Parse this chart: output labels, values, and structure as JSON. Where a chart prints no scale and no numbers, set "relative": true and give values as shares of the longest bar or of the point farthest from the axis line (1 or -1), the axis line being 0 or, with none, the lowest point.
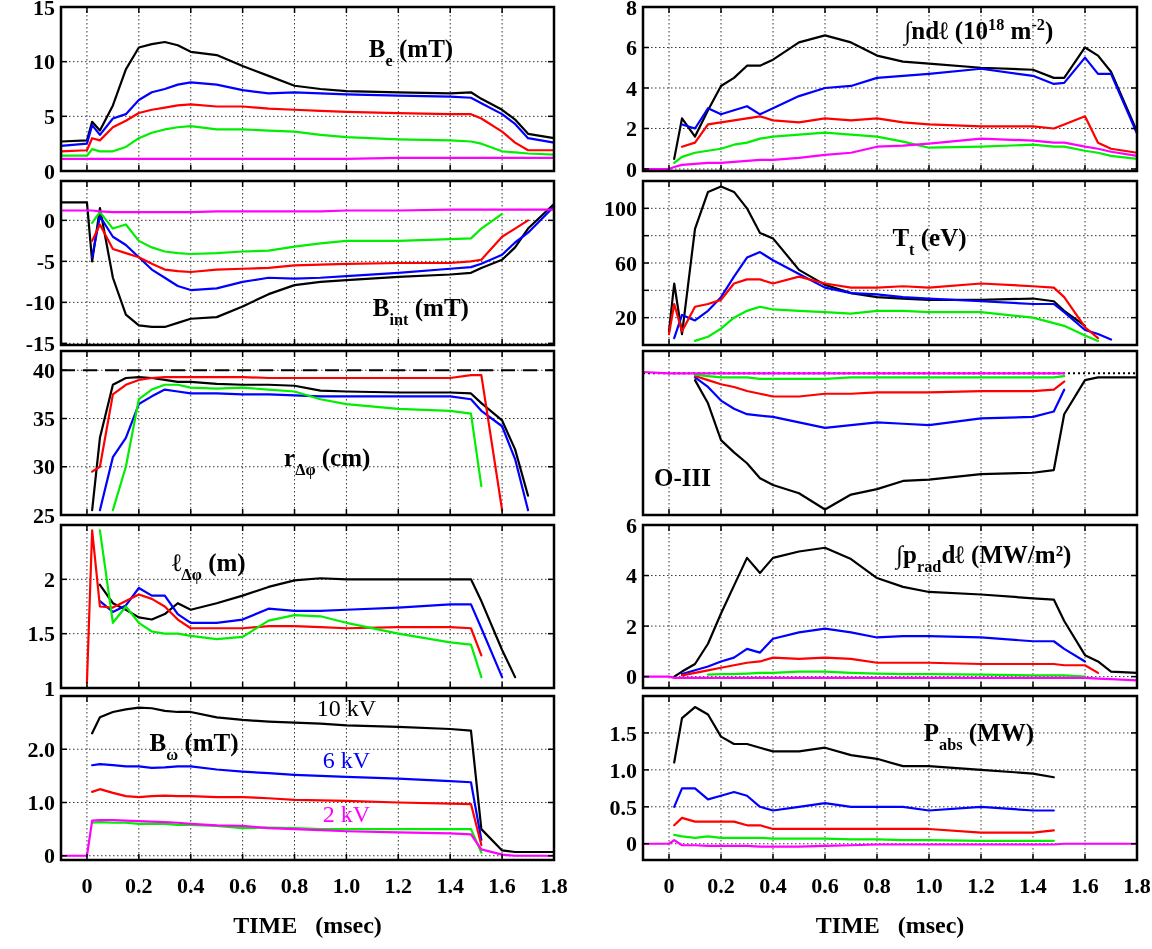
{
  "chart_data": [
    {
      "type": "line",
      "title": "B$_{e}$ (mT)",
      "x": [
        -0.1,
        0,
        0.02,
        0.05,
        0.1,
        0.15,
        0.2,
        0.25,
        0.3,
        0.35,
        0.4,
        0.5,
        0.6,
        0.7,
        0.8,
        0.9,
        1.0,
        1.2,
        1.4,
        1.48,
        1.52,
        1.6,
        1.65,
        1.7,
        1.8
      ],
      "xlim": [
        -0.1,
        1.8
      ],
      "xticks": [
        0,
        0.2,
        0.4,
        0.6,
        0.8,
        1,
        1.2,
        1.4,
        1.6,
        1.8
      ],
      "ylim": [
        0,
        15
      ],
      "yticks": [
        0,
        5,
        10,
        15
      ],
      "grid": true,
      "tick_labels": "y",
      "series": [
        {
          "color": "#000000",
          "values": [
            2.7,
            2.8,
            4.5,
            3.7,
            6,
            9.3,
            11.3,
            11.6,
            11.8,
            11.5,
            10.9,
            10.6,
            9.6,
            8.7,
            7.8,
            7.5,
            7.3,
            7.2,
            7.1,
            7.2,
            6.6,
            5.6,
            4.7,
            3.4,
            3.0
          ]
        },
        {
          "color": "#0000ff",
          "values": [
            2.3,
            2.5,
            4.2,
            3.3,
            4.8,
            5.2,
            6.5,
            7.2,
            7.5,
            7.9,
            8.1,
            7.9,
            7.4,
            7.1,
            7.2,
            7.1,
            7.0,
            6.9,
            6.8,
            6.7,
            6.2,
            5.2,
            4.3,
            3.0,
            2.6
          ]
        },
        {
          "color": "#ff0000",
          "values": [
            1.8,
            1.9,
            3.0,
            2.8,
            4.0,
            4.6,
            5.3,
            5.6,
            5.8,
            6.0,
            6.1,
            5.9,
            5.9,
            5.7,
            5.6,
            5.5,
            5.4,
            5.3,
            5.2,
            5.2,
            4.8,
            3.6,
            2.6,
            1.9,
            1.9
          ]
        },
        {
          "color": "#00ee00",
          "values": [
            1.4,
            1.4,
            2.0,
            1.8,
            1.8,
            2.2,
            3.0,
            3.5,
            3.8,
            4.0,
            4.1,
            3.8,
            3.8,
            3.7,
            3.6,
            3.3,
            3.1,
            2.9,
            2.8,
            2.7,
            2.5,
            1.8,
            1.7,
            1.6,
            1.5
          ]
        },
        {
          "color": "#ff00ff",
          "values": [
            1.1,
            1.1,
            1.1,
            1.1,
            1.1,
            1.1,
            1.1,
            1.1,
            1.1,
            1.1,
            1.1,
            1.1,
            1.1,
            1.1,
            1.1,
            1.1,
            1.1,
            1.2,
            1.2,
            1.2,
            1.2,
            1.2,
            1.2,
            1.2,
            1.2
          ]
        }
      ]
    },
    {
      "type": "line",
      "title": "∫ndℓ (10$^{18}$ m$^{-2}$)",
      "x": [
        -0.1,
        0,
        0.02,
        0.05,
        0.1,
        0.15,
        0.2,
        0.25,
        0.3,
        0.35,
        0.4,
        0.5,
        0.6,
        0.7,
        0.8,
        0.9,
        1.0,
        1.2,
        1.4,
        1.48,
        1.52,
        1.6,
        1.65,
        1.7,
        1.8
      ],
      "xlim": [
        -0.1,
        1.8
      ],
      "xticks": [
        0,
        0.2,
        0.4,
        0.6,
        0.8,
        1,
        1.2,
        1.4,
        1.6,
        1.8
      ],
      "ylim": [
        -0.1,
        8
      ],
      "yticks": [
        0,
        2,
        4,
        6,
        8
      ],
      "grid": true,
      "tick_labels": "y",
      "series": [
        {
          "color": "#000000",
          "values": [
            null,
            null,
            0.5,
            2.5,
            1.6,
            2.9,
            4.1,
            4.5,
            5.1,
            5.1,
            5.4,
            6.25,
            6.6,
            6.25,
            5.6,
            5.3,
            5.2,
            5.0,
            4.9,
            4.5,
            4.5,
            6.0,
            5.6,
            4.8,
            1.85
          ]
        },
        {
          "color": "#0000ff",
          "values": [
            null,
            null,
            null,
            2.2,
            2.0,
            3.0,
            2.7,
            2.9,
            3.1,
            2.7,
            3.0,
            3.6,
            4.0,
            4.1,
            4.5,
            4.6,
            4.7,
            4.95,
            4.6,
            4.2,
            4.25,
            5.5,
            4.7,
            4.7,
            1.75
          ]
        },
        {
          "color": "#ff0000",
          "values": [
            null,
            null,
            null,
            1.1,
            1.3,
            2.2,
            2.3,
            2.4,
            2.5,
            2.6,
            2.4,
            2.3,
            2.5,
            2.4,
            2.5,
            2.3,
            2.2,
            2.1,
            2.1,
            2.0,
            2.2,
            2.6,
            1.3,
            1.0,
            0.8
          ]
        },
        {
          "color": "#00ee00",
          "values": [
            null,
            null,
            0.3,
            0.6,
            0.8,
            0.9,
            1.0,
            1.2,
            1.3,
            1.5,
            1.6,
            1.7,
            1.8,
            1.7,
            1.6,
            1.35,
            1.05,
            1.1,
            1.2,
            1.1,
            1.1,
            0.9,
            0.8,
            0.65,
            0.5
          ]
        },
        {
          "color": "#ff00ff",
          "values": [
            0,
            0,
            0.1,
            0.2,
            0.25,
            0.3,
            0.3,
            0.35,
            0.4,
            0.45,
            0.45,
            0.55,
            0.7,
            0.8,
            1.1,
            1.15,
            1.25,
            1.5,
            1.4,
            1.3,
            1.3,
            1.1,
            1.0,
            0.85,
            0.65
          ]
        }
      ]
    },
    {
      "type": "line",
      "title": "B$_{int}$ (mT)",
      "x": [
        -0.1,
        0,
        0.02,
        0.05,
        0.1,
        0.15,
        0.2,
        0.25,
        0.3,
        0.35,
        0.4,
        0.5,
        0.6,
        0.7,
        0.8,
        0.9,
        1.0,
        1.2,
        1.4,
        1.48,
        1.52,
        1.6,
        1.65,
        1.7,
        1.8
      ],
      "xlim": [
        -0.1,
        1.8
      ],
      "xticks": [
        0,
        0.2,
        0.4,
        0.6,
        0.8,
        1,
        1.2,
        1.4,
        1.6,
        1.8
      ],
      "ylim": [
        -15.2,
        4.8
      ],
      "yticks": [
        -15,
        -10,
        -5,
        0
      ],
      "grid": true,
      "tick_labels": "y",
      "series": [
        {
          "color": "#000000",
          "values": [
            2.2,
            2.2,
            -5,
            1.5,
            -7,
            -11.5,
            -12.8,
            -13,
            -13,
            -12.5,
            -12,
            -11.8,
            -10.5,
            -9,
            -7.9,
            -7.5,
            -7.3,
            -6.9,
            -6.6,
            -6.4,
            -5.8,
            -4.8,
            -3.3,
            -1,
            2
          ]
        },
        {
          "color": "#0000ff",
          "values": [
            null,
            null,
            -4.5,
            0.5,
            -2,
            -3,
            -4.5,
            -6,
            -7,
            -8,
            -8.5,
            -8.3,
            -7.5,
            -7,
            -7.1,
            -7,
            -6.8,
            -6.4,
            -5.9,
            -5.7,
            -5.3,
            -4.2,
            -2.7,
            -1.5,
            1.7
          ]
        },
        {
          "color": "#ff0000",
          "values": [
            null,
            null,
            -2.5,
            -0.5,
            -3.5,
            -4,
            -4.5,
            -5.3,
            -6,
            -6.2,
            -6.3,
            -6,
            -5.9,
            -5.8,
            -5.5,
            -5.4,
            -5.3,
            -5.2,
            -5.2,
            -5,
            -4.8,
            -2,
            -1,
            0,
            null
          ]
        },
        {
          "color": "#00ee00",
          "values": [
            null,
            null,
            -0.3,
            1.0,
            -1,
            -0.5,
            -2.5,
            -3.3,
            -3.8,
            -4,
            -4.1,
            -4,
            -3.8,
            -3.7,
            -3.2,
            -2.8,
            -2.5,
            -2.5,
            -2.3,
            -2.2,
            -1,
            0.8,
            null,
            null,
            null
          ]
        },
        {
          "color": "#ff00ff",
          "values": [
            1.2,
            1.2,
            1.2,
            1.1,
            1,
            1,
            1,
            1,
            1,
            1,
            1,
            1.1,
            1.1,
            1.1,
            1.1,
            1.1,
            1.2,
            1.2,
            1.3,
            1.3,
            1.3,
            1.3,
            1.3,
            1.3,
            1.3
          ]
        }
      ]
    },
    {
      "type": "line",
      "title": "T$_{t}$ (eV)",
      "x": [
        0,
        0.02,
        0.05,
        0.1,
        0.15,
        0.2,
        0.25,
        0.3,
        0.35,
        0.4,
        0.5,
        0.6,
        0.7,
        0.8,
        0.9,
        1.0,
        1.2,
        1.4,
        1.48,
        1.52,
        1.6,
        1.65,
        1.7
      ],
      "xlim": [
        -0.1,
        1.8
      ],
      "xticks": [
        0,
        0.2,
        0.4,
        0.6,
        0.8,
        1,
        1.2,
        1.4,
        1.6,
        1.8
      ],
      "ylim": [
        0,
        120
      ],
      "yticks": [
        20,
        {
          "value": 40,
          "label": null
        },
        60,
        {
          "value": 80,
          "label": null
        },
        100
      ],
      "grid": true,
      "tick_labels": "y",
      "series": [
        {
          "color": "#000000",
          "values": [
            10,
            45,
            8,
            85,
            112,
            116,
            112,
            100,
            82,
            78,
            55,
            44,
            38,
            35,
            34,
            33,
            33,
            34,
            32,
            25,
            14,
            null,
            null
          ]
        },
        {
          "color": "#0000ff",
          "values": [
            null,
            5,
            22,
            18,
            25,
            35,
            50,
            64,
            68,
            62,
            52,
            42,
            38,
            37,
            35,
            34,
            32,
            30,
            30,
            24,
            11,
            8,
            4
          ]
        },
        {
          "color": "#ff0000",
          "values": [
            8,
            30,
            10,
            28,
            30,
            33,
            45,
            48,
            48,
            45,
            50,
            45,
            42,
            42,
            43,
            42,
            45,
            43,
            42,
            35,
            13,
            5,
            null
          ]
        },
        {
          "color": "#00ee00",
          "values": [
            null,
            null,
            null,
            3,
            6,
            12,
            20,
            25,
            28,
            26,
            25,
            24,
            23,
            25,
            25,
            24,
            24,
            20,
            16,
            14,
            7,
            3,
            null
          ]
        }
      ]
    },
    {
      "type": "line",
      "title": "r$_{Δφ}$ (cm)",
      "x": [
        0.02,
        0.05,
        0.1,
        0.15,
        0.2,
        0.25,
        0.3,
        0.35,
        0.4,
        0.5,
        0.6,
        0.7,
        0.8,
        0.9,
        1.0,
        1.2,
        1.4,
        1.48,
        1.52,
        1.6,
        1.65,
        1.7
      ],
      "xlim": [
        -0.1,
        1.8
      ],
      "xticks": [
        0,
        0.2,
        0.4,
        0.6,
        0.8,
        1,
        1.2,
        1.4,
        1.6,
        1.8
      ],
      "ylim": [
        25,
        42
      ],
      "yticks": [
        25,
        30,
        35,
        40
      ],
      "grid": true,
      "tick_labels": "y",
      "ref_lines": [
        {
          "axis": "y",
          "value": 40,
          "color": "#000000",
          "line_style": "dashed"
        }
      ],
      "series": [
        {
          "color": "#000000",
          "values": [
            25.5,
            33,
            38.5,
            39.2,
            39.3,
            39.2,
            39,
            38.8,
            38.8,
            38.6,
            38.5,
            38.5,
            38.4,
            37.9,
            37.8,
            37.7,
            37.7,
            37.6,
            36.6,
            34.8,
            31.8,
            27
          ]
        },
        {
          "color": "#0000ff",
          "values": [
            null,
            25.5,
            31,
            33,
            36.5,
            37.3,
            38,
            37.8,
            37.6,
            37.6,
            37.5,
            37.5,
            37.4,
            37.3,
            37.3,
            37.3,
            37.3,
            37.0,
            35.8,
            34.2,
            30.8,
            25.5
          ]
        },
        {
          "color": "#ff0000",
          "values": [
            29.5,
            30,
            37.5,
            38.5,
            39,
            39.2,
            39.3,
            39.3,
            39.3,
            39.3,
            39.3,
            39.2,
            39.2,
            39.2,
            39.2,
            39.2,
            39.2,
            39.5,
            39.5,
            25.5,
            null,
            null
          ]
        },
        {
          "color": "#00ee00",
          "values": [
            null,
            null,
            25.5,
            30,
            37,
            38,
            38.5,
            38.5,
            38.2,
            38.1,
            38.2,
            38,
            37.8,
            37,
            36.5,
            36,
            35.8,
            35.5,
            28,
            null,
            null,
            null
          ]
        }
      ]
    },
    {
      "type": "line",
      "title": "O-III",
      "relative": true,
      "x": [
        -0.1,
        0,
        0.02,
        0.05,
        0.1,
        0.15,
        0.2,
        0.25,
        0.3,
        0.35,
        0.4,
        0.5,
        0.6,
        0.7,
        0.8,
        0.9,
        1.0,
        1.2,
        1.4,
        1.48,
        1.52,
        1.6,
        1.65,
        1.7,
        1.8
      ],
      "xlim": [
        -0.1,
        1.8
      ],
      "xticks": [
        0,
        0.2,
        0.4,
        0.6,
        0.8,
        1,
        1.2,
        1.4,
        1.6,
        1.8
      ],
      "grid": "x",
      "tick_labels": false,
      "ref_lines": [
        {
          "axis": "y",
          "value": 0,
          "color": "#000000",
          "line_style": "dotted"
        }
      ],
      "series": [
        {
          "color": "#000000",
          "values": [
            null,
            null,
            null,
            null,
            -0.05,
            -0.22,
            -0.49,
            -0.58,
            -0.66,
            -0.77,
            -0.82,
            -0.88,
            -1,
            -0.89,
            -0.85,
            -0.79,
            -0.78,
            -0.74,
            -0.73,
            -0.71,
            -0.3,
            -0.05,
            -0.03,
            -0.03,
            -0.03
          ]
        },
        {
          "color": "#0000ff",
          "values": [
            null,
            null,
            null,
            null,
            -0.03,
            -0.1,
            -0.2,
            -0.26,
            -0.3,
            -0.31,
            -0.32,
            -0.36,
            -0.4,
            -0.38,
            -0.36,
            -0.37,
            -0.38,
            -0.33,
            -0.32,
            -0.28,
            -0.12,
            null,
            null,
            null,
            null
          ]
        },
        {
          "color": "#ff0000",
          "values": [
            null,
            null,
            null,
            null,
            -0.02,
            -0.05,
            -0.08,
            -0.1,
            -0.13,
            -0.15,
            -0.17,
            -0.17,
            -0.15,
            -0.15,
            -0.14,
            -0.14,
            -0.14,
            -0.13,
            -0.13,
            -0.12,
            -0.06,
            null,
            null,
            null,
            null
          ]
        },
        {
          "color": "#00ee00",
          "values": [
            null,
            null,
            null,
            null,
            -0.01,
            -0.02,
            -0.03,
            -0.03,
            -0.03,
            -0.04,
            -0.04,
            -0.04,
            -0.04,
            -0.03,
            -0.03,
            -0.03,
            -0.03,
            -0.03,
            -0.03,
            -0.03,
            -0.02,
            null,
            null,
            null,
            null
          ]
        },
        {
          "color": "#ff00ff",
          "values": [
            0.01,
            0,
            0,
            0,
            0,
            0,
            0,
            0,
            0,
            0,
            0,
            0,
            0,
            0,
            0,
            0,
            0,
            0,
            0,
            0,
            0,
            null,
            null,
            null,
            null
          ]
        }
      ]
    },
    {
      "type": "line",
      "title": "ℓ$_{Δφ}$ (m)",
      "x": [
        0,
        0.02,
        0.05,
        0.1,
        0.15,
        0.2,
        0.25,
        0.3,
        0.35,
        0.4,
        0.5,
        0.6,
        0.7,
        0.8,
        0.9,
        1.0,
        1.2,
        1.4,
        1.48,
        1.52,
        1.6,
        1.65
      ],
      "xlim": [
        -0.1,
        1.8
      ],
      "xticks": [
        0,
        0.2,
        0.4,
        0.6,
        0.8,
        1,
        1.2,
        1.4,
        1.6,
        1.8
      ],
      "ylim": [
        1,
        2.5
      ],
      "yticks": [
        1,
        1.5,
        2
      ],
      "grid": true,
      "tick_labels": "y",
      "series": [
        {
          "color": "#000000",
          "values": [
            null,
            null,
            1.95,
            1.78,
            1.72,
            1.65,
            1.63,
            1.68,
            1.78,
            1.72,
            1.78,
            1.85,
            1.93,
            1.99,
            2.01,
            2.0,
            2.0,
            2.0,
            2.0,
            1.8,
            1.35,
            1.1
          ]
        },
        {
          "color": "#0000ff",
          "values": [
            null,
            null,
            1.8,
            1.7,
            1.76,
            1.92,
            1.85,
            1.85,
            1.68,
            1.6,
            1.6,
            1.63,
            1.73,
            1.71,
            1.71,
            1.72,
            1.74,
            1.77,
            1.77,
            1.55,
            1.1,
            null
          ]
        },
        {
          "color": "#ff0000",
          "values": [
            1.05,
            2.45,
            1.75,
            1.74,
            1.8,
            1.86,
            1.82,
            1.75,
            1.63,
            1.55,
            1.55,
            1.55,
            1.57,
            1.57,
            1.56,
            1.55,
            1.56,
            1.56,
            1.55,
            1.3,
            null,
            null
          ]
        },
        {
          "color": "#00ee00",
          "values": [
            null,
            null,
            2.45,
            1.6,
            1.75,
            1.6,
            1.52,
            1.5,
            1.5,
            1.48,
            1.45,
            1.47,
            1.62,
            1.67,
            1.66,
            1.6,
            1.5,
            1.42,
            1.4,
            1.1,
            null,
            null
          ]
        }
      ]
    },
    {
      "type": "line",
      "title": "∫p$_{rad}$dℓ (MW/m²)",
      "x": [
        -0.1,
        0,
        0.02,
        0.05,
        0.1,
        0.15,
        0.2,
        0.25,
        0.3,
        0.35,
        0.4,
        0.5,
        0.6,
        0.7,
        0.8,
        0.9,
        1.0,
        1.2,
        1.4,
        1.48,
        1.52,
        1.6,
        1.65,
        1.7,
        1.8
      ],
      "xlim": [
        -0.1,
        1.8
      ],
      "xticks": [
        0,
        0.2,
        0.4,
        0.6,
        0.8,
        1,
        1.2,
        1.4,
        1.6,
        1.8
      ],
      "ylim": [
        -0.45,
        6
      ],
      "yticks": [
        0,
        2,
        4,
        6
      ],
      "grid": true,
      "tick_labels": "y",
      "series": [
        {
          "color": "#000000",
          "values": [
            null,
            null,
            0,
            0.2,
            0.5,
            1.3,
            2.5,
            3.6,
            4.7,
            4.1,
            4.7,
            4.95,
            5.1,
            4.65,
            3.9,
            3.55,
            3.35,
            3.25,
            3.1,
            3.05,
            2.2,
            0.85,
            0.6,
            0.2,
            0.15
          ]
        },
        {
          "color": "#0000ff",
          "values": [
            null,
            null,
            null,
            0.1,
            0.25,
            0.4,
            0.6,
            0.75,
            1.1,
            0.95,
            1.5,
            1.75,
            1.9,
            1.75,
            1.55,
            1.6,
            1.6,
            1.55,
            1.4,
            1.4,
            1.1,
            0.6,
            null,
            null,
            null
          ]
        },
        {
          "color": "#ff0000",
          "values": [
            null,
            null,
            null,
            0.05,
            0.15,
            0.25,
            0.35,
            0.45,
            0.55,
            0.6,
            0.75,
            0.7,
            0.75,
            0.7,
            0.55,
            0.55,
            0.55,
            0.5,
            0.5,
            0.5,
            0.45,
            0.45,
            0.15,
            null,
            null
          ]
        },
        {
          "color": "#00ee00",
          "values": [
            null,
            null,
            null,
            null,
            null,
            0.08,
            0.1,
            0.1,
            0.12,
            0.15,
            0.15,
            0.2,
            0.2,
            0.15,
            0.12,
            0.1,
            0.1,
            0.08,
            0.05,
            0.05,
            0.05,
            0.0,
            null,
            null,
            null
          ]
        },
        {
          "color": "#ff00ff",
          "values": [
            0,
            0,
            -0.05,
            -0.05,
            -0.05,
            -0.05,
            -0.05,
            -0.05,
            -0.05,
            -0.05,
            -0.05,
            -0.05,
            -0.05,
            -0.05,
            -0.05,
            -0.05,
            -0.05,
            -0.05,
            -0.05,
            -0.05,
            -0.05,
            -0.05,
            -0.08,
            -0.1,
            -0.15
          ]
        }
      ]
    },
    {
      "type": "line",
      "title": "B$_{ω}$ (mT)",
      "xlabel": "TIME   (msec)",
      "x": [
        -0.1,
        0,
        0.02,
        0.05,
        0.1,
        0.15,
        0.2,
        0.25,
        0.3,
        0.35,
        0.4,
        0.5,
        0.6,
        0.7,
        0.8,
        0.9,
        1.0,
        1.2,
        1.4,
        1.48,
        1.52,
        1.6,
        1.65,
        1.7,
        1.8
      ],
      "xlim": [
        -0.1,
        1.8
      ],
      "xticks": [
        0,
        0.2,
        0.4,
        0.6,
        0.8,
        {
          "value": 1,
          "label": "1.0"
        },
        1.2,
        1.4,
        1.6,
        1.8
      ],
      "ylim": [
        -0.08,
        3
      ],
      "yticks": [
        0,
        {
          "value": 1,
          "label": "1.0"
        },
        {
          "value": 2,
          "label": "2.0"
        }
      ],
      "grid": true,
      "series": [
        {
          "name": "10 kV",
          "color": "#000000",
          "values": [
            null,
            null,
            2.3,
            2.6,
            2.7,
            2.75,
            2.78,
            2.77,
            2.72,
            2.7,
            2.7,
            2.6,
            2.55,
            2.52,
            2.5,
            2.48,
            2.45,
            2.42,
            2.38,
            2.35,
            0.5,
            0.1,
            0.07,
            0.07,
            0.07
          ]
        },
        {
          "name": "6 kV",
          "color": "#0000ff",
          "values": [
            null,
            null,
            1.7,
            1.72,
            1.7,
            1.68,
            1.68,
            1.65,
            1.66,
            1.68,
            1.68,
            1.62,
            1.58,
            1.55,
            1.52,
            1.5,
            1.48,
            1.45,
            1.4,
            1.38,
            0.3,
            null,
            null,
            null,
            null
          ]
        },
        {
          "color": "#ff0000",
          "values": [
            null,
            null,
            1.2,
            1.25,
            1.18,
            1.12,
            1.1,
            1.12,
            1.13,
            1.12,
            1.12,
            1.1,
            1.1,
            1.08,
            1.05,
            1.04,
            1.03,
            1.0,
            0.98,
            0.97,
            0.2,
            null,
            null,
            null,
            null
          ]
        },
        {
          "color": "#00ee00",
          "values": [
            null,
            null,
            0.62,
            0.63,
            0.62,
            0.62,
            0.6,
            0.6,
            0.6,
            0.58,
            0.58,
            0.56,
            0.52,
            0.53,
            0.52,
            0.5,
            0.5,
            0.5,
            0.5,
            0.5,
            0.06,
            null,
            null,
            null,
            null
          ]
        },
        {
          "name": "2 kV",
          "color": "#ff00ff",
          "values": [
            0,
            0,
            0.66,
            0.67,
            0.67,
            0.66,
            0.65,
            0.64,
            0.63,
            0.62,
            0.6,
            0.57,
            0.56,
            0.52,
            0.5,
            0.48,
            0.46,
            0.44,
            0.42,
            0.4,
            0.12,
            0.02,
            0,
            0,
            0
          ]
        }
      ]
    },
    {
      "type": "line",
      "title": "P$_{abs}$ (MW)",
      "xlabel": "TIME   (msec)",
      "x": [
        -0.1,
        0,
        0.02,
        0.05,
        0.1,
        0.15,
        0.2,
        0.25,
        0.3,
        0.35,
        0.4,
        0.5,
        0.6,
        0.7,
        0.8,
        0.9,
        1.0,
        1.2,
        1.4,
        1.48,
        1.52,
        1.6,
        1.65,
        1.7,
        1.8
      ],
      "xlim": [
        -0.1,
        1.8
      ],
      "xticks": [
        0,
        0.2,
        0.4,
        0.6,
        0.8,
        {
          "value": 1,
          "label": "1.0"
        },
        1.2,
        1.4,
        1.6,
        1.8
      ],
      "ylim": [
        -0.22,
        2
      ],
      "yticks": [
        0,
        0.5,
        {
          "value": 1,
          "label": "1.0"
        },
        1.5
      ],
      "grid": true,
      "series": [
        {
          "color": "#000000",
          "values": [
            null,
            null,
            1.1,
            1.7,
            1.85,
            1.75,
            1.45,
            1.35,
            1.35,
            1.3,
            1.25,
            1.25,
            1.3,
            1.2,
            1.15,
            1.05,
            1.05,
            1.0,
            0.95,
            0.9,
            null,
            null,
            null,
            null,
            null
          ]
        },
        {
          "color": "#0000ff",
          "values": [
            null,
            null,
            0.5,
            0.75,
            0.75,
            0.6,
            0.65,
            0.7,
            0.65,
            0.5,
            0.45,
            0.5,
            0.55,
            0.5,
            0.5,
            0.5,
            0.45,
            0.5,
            0.45,
            0.45,
            null,
            null,
            null,
            null,
            null
          ]
        },
        {
          "color": "#ff0000",
          "values": [
            null,
            null,
            0.25,
            0.35,
            0.3,
            0.3,
            0.3,
            0.3,
            0.25,
            0.25,
            0.2,
            0.2,
            0.2,
            0.2,
            0.2,
            0.2,
            0.2,
            0.15,
            0.15,
            0.18,
            null,
            null,
            null,
            null,
            null
          ]
        },
        {
          "color": "#00ee00",
          "values": [
            null,
            null,
            0.12,
            0.1,
            0.08,
            0.1,
            0.08,
            0.08,
            0.08,
            0.08,
            0.07,
            0.07,
            0.07,
            0.06,
            0.06,
            0.05,
            0.05,
            0.04,
            0.04,
            0.04,
            null,
            null,
            null,
            null,
            null
          ]
        },
        {
          "color": "#ff00ff",
          "values": [
            0,
            0,
            0.05,
            -0.02,
            -0.02,
            -0.03,
            -0.03,
            -0.03,
            -0.03,
            -0.04,
            -0.04,
            -0.04,
            -0.03,
            -0.02,
            -0.01,
            -0.01,
            -0.01,
            -0.01,
            -0.01,
            -0.01,
            0,
            0,
            0,
            0,
            0
          ]
        }
      ]
    }
  ]
}
